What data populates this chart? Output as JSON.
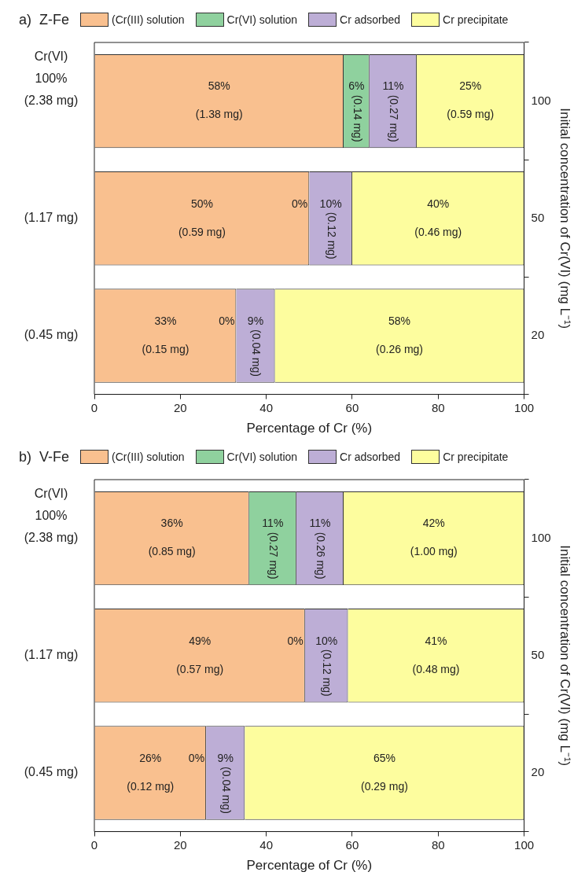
{
  "chart_data": [
    {
      "type": "bar",
      "orientation": "horizontal",
      "stacked": true,
      "title": "a)  Z-Fe",
      "legend": "top",
      "categories": [
        "100",
        "50",
        "20"
      ],
      "xlim": [
        0,
        100
      ],
      "xticks": [
        0,
        20,
        40,
        60,
        80,
        100
      ],
      "xlabel": "Percentage of Cr (%)",
      "y2label": "Initial concentration of Cr(VI) (mg L⁻¹)",
      "series": [
        {
          "name": "(Cr(III) solution",
          "color": "#f9c08f",
          "values": [
            58,
            50,
            33
          ],
          "value_labels": [
            "58%\n(1.38 mg)",
            "50%\n(0.59 mg)",
            "33%\n(0.15 mg)"
          ]
        },
        {
          "name": "Cr(VI) solution",
          "color": "#8fd19e",
          "values": [
            6,
            0,
            0
          ],
          "value_labels": [
            "6%\n(0.14 mg)",
            null,
            null
          ]
        },
        {
          "name": "Cr adsorbed",
          "color": "#bdaed6",
          "values": [
            11,
            10,
            9
          ],
          "value_labels": [
            "11%\n(0.27 mg)",
            "10%\n(0.12 mg)",
            "9%\n(0.04 mg)"
          ]
        },
        {
          "name": "Cr precipitate",
          "color": "#fdfd9e",
          "values": [
            25,
            40,
            58
          ],
          "value_labels": [
            "25%\n(0.59 mg)",
            "40%\n(0.46 mg)",
            "58%\n(0.26 mg)"
          ]
        }
      ],
      "annotations": [
        "Cr(VI)",
        "100%",
        "(2.38 mg)",
        "(1.17 mg)",
        "(0.45 mg)",
        {
          "text": "0%",
          "x": 50,
          "y": "50"
        },
        {
          "text": "0%",
          "x": 33,
          "y": "20"
        }
      ]
    },
    {
      "type": "bar",
      "orientation": "horizontal",
      "stacked": true,
      "title": "b)  V-Fe",
      "legend": "top",
      "categories": [
        "100",
        "50",
        "20"
      ],
      "xlim": [
        0,
        100
      ],
      "xticks": [
        0,
        20,
        40,
        60,
        80,
        100
      ],
      "xlabel": "Percentage of Cr (%)",
      "y2label": "Initial concentration of Cr(VI) (mg L⁻¹)",
      "series": [
        {
          "name": "(Cr(III) solution",
          "color": "#f9c08f",
          "values": [
            36,
            49,
            26
          ],
          "value_labels": [
            "36%\n(0.85 mg)",
            "49%\n(0.57 mg)",
            "26%\n(0.12 mg)"
          ]
        },
        {
          "name": "Cr(VI) solution",
          "color": "#8fd19e",
          "values": [
            11,
            0,
            0
          ],
          "value_labels": [
            "11%\n(0.27 mg)",
            null,
            null
          ]
        },
        {
          "name": "Cr adsorbed",
          "color": "#bdaed6",
          "values": [
            11,
            10,
            9
          ],
          "value_labels": [
            "11%\n(0.26 mg)",
            "10%\n(0.12 mg)",
            "9%\n(0.04 mg)"
          ]
        },
        {
          "name": "Cr precipitate",
          "color": "#fdfd9e",
          "values": [
            42,
            41,
            65
          ],
          "value_labels": [
            "42%\n(1.00 mg)",
            "41%\n(0.48 mg)",
            "65%\n(0.29 mg)"
          ]
        }
      ],
      "annotations": [
        "Cr(VI)",
        "100%",
        "(2.38 mg)",
        "(1.17 mg)",
        "(0.45 mg)",
        {
          "text": "0%",
          "x": 49,
          "y": "50"
        },
        {
          "text": "0%",
          "x": 26,
          "y": "20"
        }
      ]
    }
  ]
}
